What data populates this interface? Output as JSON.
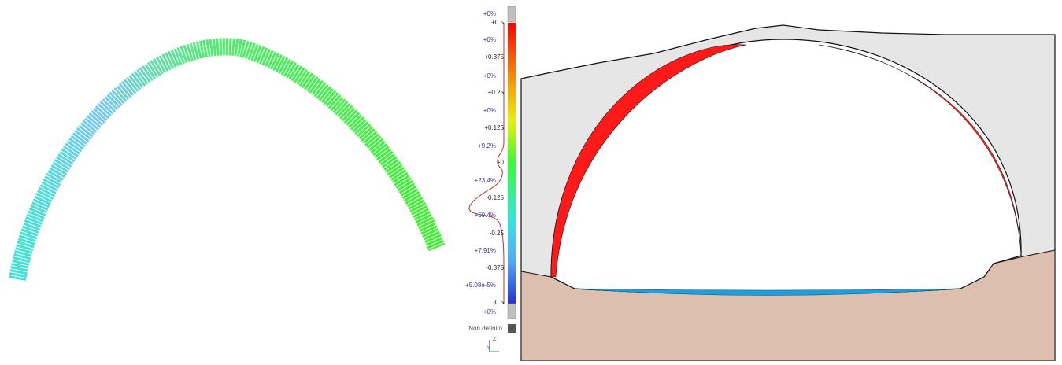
{
  "color_scale": {
    "percents": [
      "+0%",
      "+0%",
      "+0%",
      "+0%",
      "+9.2%",
      "+23.4%",
      "+59.4%",
      "+7.91%",
      "+5.08e-5%",
      "+0%"
    ],
    "values": [
      "+0.5",
      "+0.375",
      "+0.25",
      "+0.125",
      "+0",
      "-0.125",
      "-0.25",
      "-0.375",
      "-0.5"
    ]
  },
  "undefined_label": "Non definito",
  "axes": {
    "z": "Z",
    "y": "Y"
  }
}
